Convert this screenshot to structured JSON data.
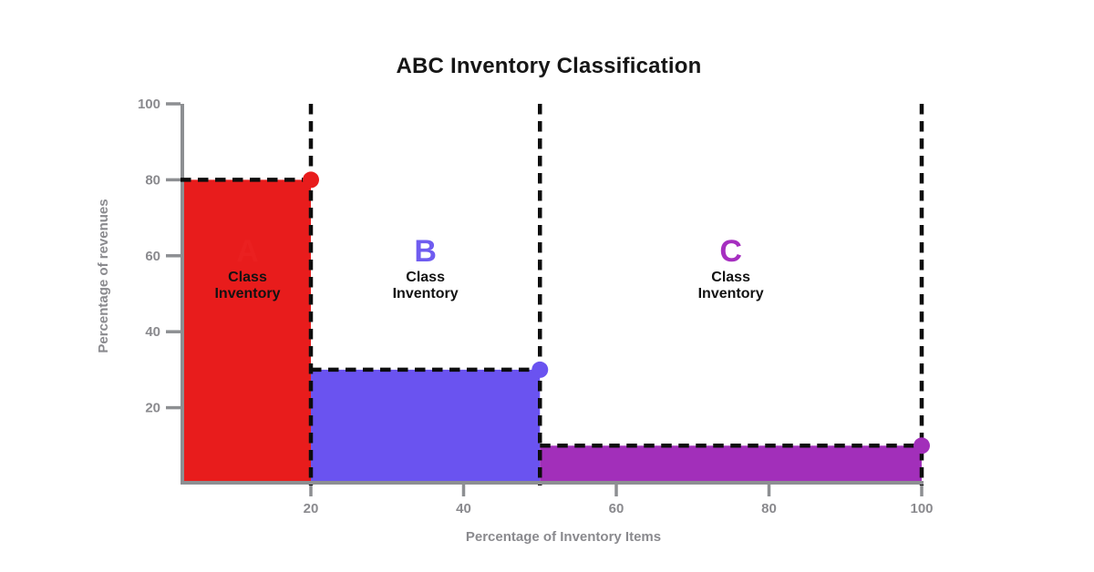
{
  "chart_data": {
    "type": "bar",
    "title": "ABC Inventory Classification",
    "xlabel": "Percentage of Inventory Items",
    "ylabel": "Percentage of revenues",
    "xlim": [
      0,
      100
    ],
    "ylim": [
      0,
      100
    ],
    "x_ticks": [
      20,
      40,
      60,
      80,
      100
    ],
    "y_ticks": [
      20,
      40,
      60,
      80,
      100
    ],
    "grid": false,
    "legend": "none",
    "segments": [
      {
        "class": "A",
        "letter": "A",
        "label": "Class Inventory",
        "x_start": 0,
        "x_end": 20,
        "inventory_pct": 20,
        "revenue_pct": 80,
        "color": "#e81c1c",
        "letter_color": "#ea2020"
      },
      {
        "class": "B",
        "letter": "B",
        "label": "Class Inventory",
        "x_start": 20,
        "x_end": 50,
        "inventory_pct": 30,
        "revenue_pct": 30,
        "color": "#6a53f0",
        "letter_color": "#6f5cf0"
      },
      {
        "class": "C",
        "letter": "C",
        "label": "Class Inventory",
        "x_start": 50,
        "x_end": 100,
        "inventory_pct": 50,
        "revenue_pct": 10,
        "color": "#a22fba",
        "letter_color": "#a62fc0"
      }
    ],
    "styles": {
      "background": "#ffffff",
      "axis_color": "#8d8f92",
      "tick_label_color": "#8a8a8e",
      "axis_label_color": "#8a8a8e",
      "dash_color": "#0d0d0d",
      "title_color": "#161616",
      "class_label_color": "#121212"
    }
  }
}
